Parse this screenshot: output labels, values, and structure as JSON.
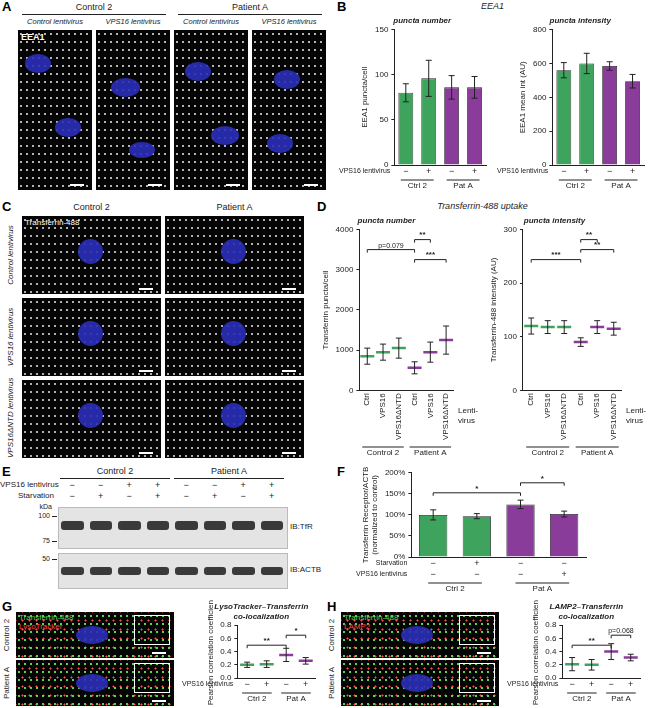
{
  "panels": [
    {
      "label": "A",
      "columns": [
        "Control 2",
        "Patient A"
      ],
      "images": [
        "Control lentivirus",
        "VPS16 lentivirus",
        "Control lentivirus",
        "VPS16 lentivirus"
      ],
      "stain": "EEA1"
    },
    {
      "label": "B",
      "title": "EEA1"
    },
    {
      "label": "C",
      "columns": [
        "Control 2",
        "Patient A"
      ],
      "rows": [
        "Control lentivirus",
        "VPS16 lentivirus",
        "VPS16ΔNTD lentivirus"
      ],
      "stain": "Transferrin-488"
    },
    {
      "label": "D",
      "title": "Transferrin-488 uptake"
    },
    {
      "label": "E",
      "columns": [
        "Control 2",
        "Patient A"
      ],
      "lane_rows": [
        {
          "name": "VPS16 lentivirus",
          "labels": [
            "−",
            "−",
            "+",
            "+",
            "−",
            "−",
            "+",
            "+"
          ]
        },
        {
          "name": "Starvation",
          "labels": [
            "−",
            "+",
            "−",
            "+",
            "−",
            "+",
            "−",
            "+"
          ]
        }
      ],
      "kda_label": "kDa",
      "kda_markers": [
        100,
        75,
        50
      ],
      "blots": [
        "IB:TfR",
        "IB:ACTB"
      ]
    },
    {
      "label": "F"
    },
    {
      "label": "G",
      "rows": [
        "Control 2",
        "Patient A"
      ],
      "stains": [
        {
          "name": "Transferrin-488",
          "color": "#5ad45a"
        },
        {
          "name": "LysoTracker",
          "color": "#ff4a4a"
        }
      ]
    },
    {
      "label": "H",
      "rows": [
        "Control 2",
        "Patient A"
      ],
      "stains": [
        {
          "name": "Transferrin-488",
          "color": "#5ad45a"
        },
        {
          "name": "LAMP2",
          "color": "#ff4a4a"
        }
      ]
    }
  ],
  "chart_data": [
    {
      "panel": "B",
      "type": "bar",
      "title": "puncta number",
      "y_label": "EEA1 puncta/cell",
      "values": [
        80,
        96,
        86,
        86
      ],
      "errors": [
        10,
        20,
        13,
        12
      ],
      "colors": [
        "#3da35d",
        "#3da35d",
        "#8a3c9a",
        "#8a3c9a"
      ],
      "ylim": [
        0,
        150
      ],
      "yticks": [
        0,
        50,
        100,
        150
      ],
      "grid": false,
      "x_rows": [
        {
          "name": "VPS16 lentivirus",
          "labels": [
            "−",
            "+",
            "−",
            "+"
          ]
        }
      ],
      "groups": [
        "Ctrl 2",
        "Pat A"
      ]
    },
    {
      "panel": "B",
      "type": "bar",
      "title": "puncta intensity",
      "y_label": "EEA1 mean int (AU)",
      "values": [
        560,
        600,
        585,
        495
      ],
      "errors": [
        45,
        60,
        25,
        40
      ],
      "colors": [
        "#3da35d",
        "#3da35d",
        "#8a3c9a",
        "#8a3c9a"
      ],
      "ylim": [
        0,
        800
      ],
      "yticks": [
        0,
        200,
        400,
        600,
        800
      ],
      "grid": false,
      "x_rows": [
        {
          "name": "VPS16 lentivirus",
          "labels": [
            "−",
            "+",
            "−",
            "+"
          ]
        }
      ],
      "groups": [
        "Ctrl 2",
        "Pat A"
      ]
    },
    {
      "panel": "D",
      "type": "dot",
      "marker": "dash",
      "title": "puncta number",
      "y_label": "Transferrin puncta/cell",
      "categories": [
        "Ctrl",
        "VPS16",
        "VPS16ΔNTD",
        "Ctrl",
        "VPS16",
        "VPS16ΔNTD"
      ],
      "values": [
        850,
        950,
        1050,
        560,
        950,
        1250
      ],
      "errors": [
        200,
        200,
        250,
        150,
        250,
        350
      ],
      "colors": [
        "#3da35d",
        "#3da35d",
        "#3da35d",
        "#8a3c9a",
        "#8a3c9a",
        "#8a3c9a"
      ],
      "ylim": [
        0,
        4000
      ],
      "yticks": [
        0,
        1000,
        2000,
        3000,
        4000
      ],
      "grid": false,
      "groups": [
        "Control 2",
        "Patient A"
      ],
      "x_label": "Lenti-virus",
      "brackets": [
        {
          "from": 3,
          "to": 4,
          "label": "**"
        },
        {
          "from": 0,
          "to": 3,
          "label": "p=0.079"
        },
        {
          "from": 3,
          "to": 5,
          "label": "***"
        }
      ]
    },
    {
      "panel": "D",
      "type": "dot",
      "marker": "dash",
      "title": "puncta intensity",
      "y_label": "Transferrin-488 intensity (AU)",
      "categories": [
        "Ctrl",
        "VPS16",
        "VPS16ΔNTD",
        "Ctrl",
        "VPS16",
        "VPS16ΔNTD"
      ],
      "values": [
        120,
        118,
        118,
        90,
        118,
        115
      ],
      "errors": [
        15,
        12,
        12,
        8,
        12,
        12
      ],
      "colors": [
        "#3da35d",
        "#3da35d",
        "#3da35d",
        "#8a3c9a",
        "#8a3c9a",
        "#8a3c9a"
      ],
      "ylim": [
        0,
        300
      ],
      "yticks": [
        0,
        100,
        200,
        300
      ],
      "grid": false,
      "groups": [
        "Control 2",
        "Patient A"
      ],
      "x_label": "Lenti-virus",
      "brackets": [
        {
          "from": 3,
          "to": 4,
          "label": "**"
        },
        {
          "from": 3,
          "to": 5,
          "label": "**"
        },
        {
          "from": 0,
          "to": 3,
          "label": "***"
        }
      ]
    },
    {
      "panel": "F",
      "type": "bar",
      "y_label": [
        "Transferrin Receptor/ACTB",
        "(normalized to control)"
      ],
      "values": [
        100,
        97,
        125,
        102
      ],
      "errors": [
        12,
        6,
        10,
        7
      ],
      "colors": [
        "#3da35d",
        "#3da35d",
        "#8a3c9a",
        "#8a3c9a"
      ],
      "ylim": [
        0,
        200
      ],
      "yticks": [
        {
          "value": 0,
          "label": "0%"
        },
        {
          "value": 50,
          "label": "50%"
        },
        {
          "value": 100,
          "label": "100%"
        },
        {
          "value": 150,
          "label": "150%"
        },
        {
          "value": 200,
          "label": "200%"
        }
      ],
      "grid": false,
      "x_rows": [
        {
          "name": "Starvation",
          "labels": [
            "−",
            "+",
            "−",
            "−"
          ]
        },
        {
          "name": "VPS16 lentivirus",
          "labels": [
            "−",
            "−",
            "−",
            "+"
          ]
        }
      ],
      "groups": [
        "Ctrl 2",
        "Pat A"
      ],
      "brackets": [
        {
          "from": 2,
          "to": 3,
          "label": "*"
        },
        {
          "from": 0,
          "to": 2,
          "label": "*"
        }
      ]
    },
    {
      "panel": "G",
      "type": "dot",
      "marker": "dash",
      "title": [
        "LysoTracker–Transferrin",
        "co-localization"
      ],
      "y_label": "Pearson correlation coefficient",
      "values": [
        0.2,
        0.21,
        0.35,
        0.26
      ],
      "errors": [
        0.04,
        0.05,
        0.1,
        0.05
      ],
      "colors": [
        "#3da35d",
        "#3da35d",
        "#8a3c9a",
        "#8a3c9a"
      ],
      "ylim": [
        0,
        0.8
      ],
      "yticks": [
        {
          "value": 0,
          "label": "0.0"
        },
        {
          "value": 0.2,
          "label": "0.2"
        },
        {
          "value": 0.4,
          "label": "0.4"
        },
        {
          "value": 0.6,
          "label": "0.6"
        },
        {
          "value": 0.8,
          "label": "0.8"
        }
      ],
      "grid": false,
      "x_rows": [
        {
          "name": "VPS16 lentivirus",
          "labels": [
            "−",
            "+",
            "−",
            "+"
          ]
        }
      ],
      "groups": [
        "Ctrl 2",
        "Pat A"
      ],
      "brackets": [
        {
          "from": 2,
          "to": 3,
          "label": "*"
        },
        {
          "from": 0,
          "to": 2,
          "label": "**"
        }
      ]
    },
    {
      "panel": "H",
      "type": "dot",
      "marker": "dash",
      "title": [
        "LAMP2–Transferrin",
        "co-localization"
      ],
      "y_label": "Pearson correlation coefficient",
      "values": [
        0.21,
        0.2,
        0.4,
        0.31
      ],
      "errors": [
        0.1,
        0.08,
        0.12,
        0.05
      ],
      "colors": [
        "#3da35d",
        "#3da35d",
        "#8a3c9a",
        "#8a3c9a"
      ],
      "ylim": [
        0,
        0.8
      ],
      "yticks": [
        {
          "value": 0,
          "label": "0.0"
        },
        {
          "value": 0.2,
          "label": "0.2"
        },
        {
          "value": 0.4,
          "label": "0.4"
        },
        {
          "value": 0.6,
          "label": "0.6"
        },
        {
          "value": 0.8,
          "label": "0.8"
        }
      ],
      "grid": false,
      "x_rows": [
        {
          "name": "VPS16 lentivirus",
          "labels": [
            "−",
            "+",
            "−",
            "+"
          ]
        }
      ],
      "groups": [
        "Ctrl 2",
        "Pat A"
      ],
      "brackets": [
        {
          "from": 2,
          "to": 3,
          "label": "p=0.068"
        },
        {
          "from": 0,
          "to": 2,
          "label": "**"
        }
      ]
    }
  ]
}
